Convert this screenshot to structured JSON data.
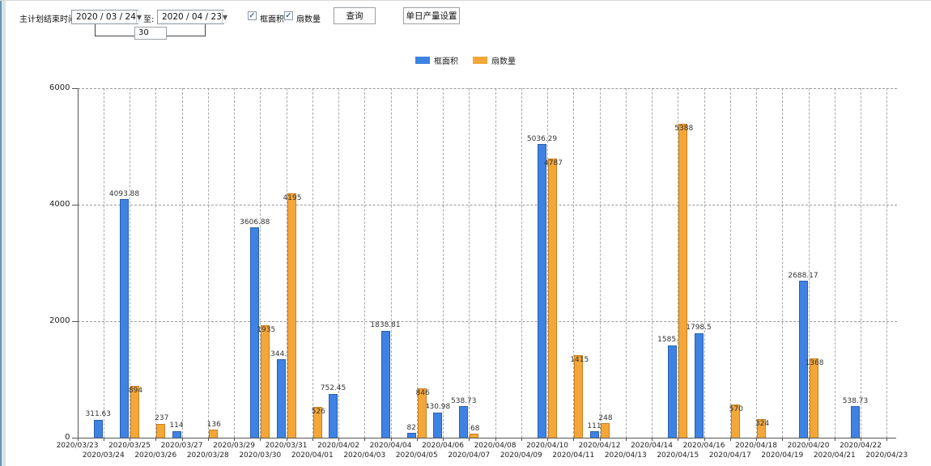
{
  "toolbar": {
    "plan_end_label": "主计划结束时间:",
    "date_from": "2020 / 03 / 24",
    "to_label": "至:",
    "date_to": "2020 / 04 / 23",
    "span_days": "30",
    "checkbox_frame_area": {
      "label": "框面积",
      "checked": true
    },
    "checkbox_fan_count": {
      "label": "扇数量",
      "checked": true
    },
    "query_button": "查询",
    "daily_output_button": "单日产量设置"
  },
  "icons": {
    "dropdown_arrow": "▼",
    "checkmark": "✓"
  },
  "legend": [
    {
      "label": "框面积",
      "color": "#3e82e3",
      "border": "#2b5fae"
    },
    {
      "label": "扇数量",
      "color": "#f4a738",
      "border": "#c7801f"
    }
  ],
  "chart_data": {
    "type": "bar",
    "title": "",
    "xlabel": "",
    "ylabel": "",
    "ylim": [
      0,
      6000
    ],
    "yticks": [
      0,
      2000,
      4000,
      6000
    ],
    "grid": "dashed",
    "legend_position": "top-center",
    "categories": [
      "2020/03/23",
      "2020/03/24",
      "2020/03/25",
      "2020/03/26",
      "2020/03/27",
      "2020/03/28",
      "2020/03/29",
      "2020/03/30",
      "2020/03/31",
      "2020/04/01",
      "2020/04/02",
      "2020/04/03",
      "2020/04/04",
      "2020/04/05",
      "2020/04/06",
      "2020/04/07",
      "2020/04/08",
      "2020/04/09",
      "2020/04/10",
      "2020/04/11",
      "2020/04/12",
      "2020/04/13",
      "2020/04/14",
      "2020/04/15",
      "2020/04/16",
      "2020/04/17",
      "2020/04/18",
      "2020/04/19",
      "2020/04/20",
      "2020/04/21",
      "2020/04/22",
      "2020/04/23"
    ],
    "series": [
      {
        "name": "框面积",
        "color": "#3e82e3",
        "border": "#2b5fae",
        "values": [
          null,
          311.63,
          4093.88,
          null,
          114,
          null,
          null,
          3606.88,
          1344.95,
          null,
          752.45,
          null,
          1838.81,
          82,
          430.98,
          538.73,
          null,
          null,
          5036.29,
          null,
          111,
          null,
          null,
          1585.96,
          1798.5,
          null,
          null,
          null,
          2688.17,
          null,
          538.73,
          null
        ]
      },
      {
        "name": "扇数量",
        "color": "#f4a738",
        "border": "#c7801f",
        "values": [
          null,
          null,
          894,
          237,
          null,
          136,
          null,
          1935,
          4195,
          526,
          null,
          null,
          null,
          846,
          null,
          68,
          null,
          null,
          4787,
          1415,
          248,
          null,
          null,
          5388,
          null,
          570,
          324,
          null,
          1368,
          null,
          null,
          null
        ]
      }
    ]
  }
}
